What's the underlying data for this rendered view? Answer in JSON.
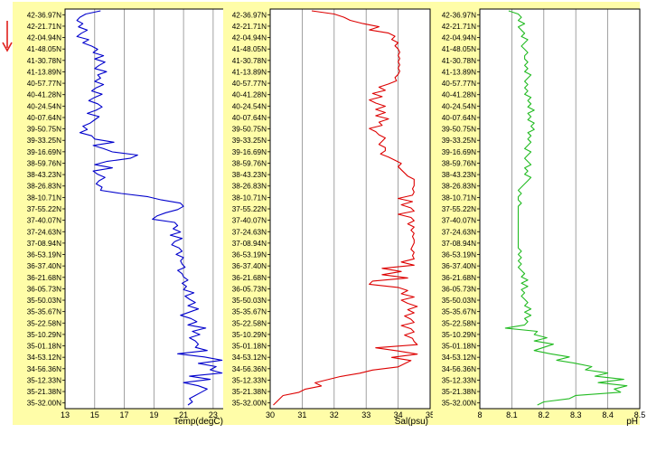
{
  "page": {
    "background": "#ffffff",
    "panel_fill": "#fffda8",
    "frame_color": "#000000",
    "grid_color": "#8a8a8a"
  },
  "direction_arrow": {
    "icon": "down-arrow-icon",
    "color": "#e0201b"
  },
  "latitude_labels": [
    "42-36.97N",
    "42-21.71N",
    "42-04.94N",
    "41-48.05N",
    "41-30.78N",
    "41-13.89N",
    "40-57.77N",
    "40-41.28N",
    "40-24.54N",
    "40-07.64N",
    "39-50.75N",
    "39-33.25N",
    "39-16.69N",
    "38-59.76N",
    "38-43.23N",
    "38-26.83N",
    "38-10.71N",
    "37-55.22N",
    "37-40.07N",
    "37-24.63N",
    "37-08.94N",
    "36-53.19N",
    "36-37.40N",
    "36-21.68N",
    "36-05.73N",
    "35-50.03N",
    "35-35.67N",
    "35-22.58N",
    "35-10.29N",
    "35-01.18N",
    "34-53.12N",
    "34-56.36N",
    "35-12.33N",
    "35-21.38N",
    "35-32.00N"
  ],
  "chart_data": [
    {
      "type": "line",
      "xlabel": "Temp(degC)",
      "xlim": [
        13,
        23.8
      ],
      "xticks": [
        13,
        15,
        17,
        19,
        21,
        23
      ],
      "series": [
        {
          "color": "#0000cc",
          "values": [
            15.4,
            14.4,
            14.0,
            13.8,
            14.2,
            13.9,
            14.5,
            14.1,
            13.8,
            14.6,
            14.2,
            14.8,
            15.2,
            14.9,
            15.6,
            15.0,
            15.7,
            15.3,
            15.0,
            15.8,
            15.2,
            15.4,
            15.0,
            15.6,
            15.1,
            14.8,
            15.5,
            15.0,
            14.6,
            15.2,
            15.5,
            15.1,
            14.5,
            15.3,
            15.0,
            14.7,
            14.2,
            14.5,
            14.0,
            14.8,
            15.0,
            16.3,
            14.9,
            15.6,
            16.2,
            17.9,
            17.4,
            15.8,
            15.0,
            16.2,
            14.9,
            15.2,
            15.7,
            15.3,
            15.1,
            15.5,
            15.4,
            16.8,
            18.6,
            19.5,
            20.8,
            21.0,
            20.6,
            19.8,
            19.2,
            18.9,
            20.4,
            20.6,
            20.3,
            20.8,
            20.1,
            20.9,
            20.4,
            20.2,
            20.7,
            20.9,
            20.5,
            21.0,
            20.8,
            20.9,
            21.1,
            20.6,
            20.9,
            21.0,
            21.3,
            20.9,
            21.2,
            21.0,
            21.7,
            21.1,
            21.4,
            21.8,
            21.3,
            22.0,
            21.4,
            20.8,
            21.5,
            21.9,
            21.3,
            22.5,
            21.6,
            22.1,
            21.4,
            21.8,
            22.0,
            21.8,
            22.6,
            20.6,
            22.4,
            23.6,
            22.0,
            23.2,
            22.8,
            23.6,
            21.4,
            22.8,
            21.0,
            22.0,
            22.6,
            22.2,
            21.8,
            21.4,
            21.6,
            21.3
          ]
        }
      ]
    },
    {
      "type": "line",
      "xlabel": "Sal(psu)",
      "xlim": [
        30,
        35
      ],
      "xticks": [
        30,
        31,
        32,
        33,
        34,
        35
      ],
      "series": [
        {
          "color": "#dd0000",
          "values": [
            31.3,
            32.0,
            32.3,
            32.5,
            32.9,
            33.4,
            33.1,
            33.7,
            33.9,
            33.8,
            34.0,
            33.9,
            34.0,
            34.05,
            34.0,
            34.05,
            34.0,
            34.05,
            34.0,
            34.05,
            34.0,
            33.9,
            33.95,
            33.7,
            33.4,
            33.6,
            33.2,
            33.5,
            33.1,
            33.3,
            33.6,
            33.3,
            33.6,
            33.3,
            33.7,
            33.4,
            33.5,
            33.1,
            33.3,
            33.4,
            33.6,
            33.5,
            33.4,
            33.6,
            33.6,
            33.45,
            33.7,
            33.9,
            34.1,
            34.0,
            34.1,
            34.2,
            34.3,
            34.5,
            34.5,
            34.5,
            34.45,
            34.5,
            34.45,
            34.0,
            34.45,
            34.1,
            34.4,
            34.5,
            34.0,
            34.4,
            34.5,
            34.3,
            34.5,
            34.4,
            34.5,
            34.45,
            34.5,
            34.5,
            34.45,
            34.4,
            34.5,
            34.45,
            34.5,
            34.1,
            34.5,
            33.5,
            34.1,
            33.5,
            34.3,
            33.2,
            33.1,
            34.0,
            34.3,
            34.1,
            34.5,
            34.1,
            34.3,
            34.6,
            34.3,
            34.5,
            34.2,
            34.4,
            34.5,
            34.1,
            34.4,
            34.5,
            34.2,
            34.45,
            34.5,
            34.6,
            33.3,
            34.0,
            34.6,
            33.8,
            34.4,
            34.2,
            34.0,
            33.2,
            32.8,
            32.2,
            31.8,
            31.4,
            31.6,
            31.1,
            30.9,
            30.4,
            30.3,
            30.2,
            30.1
          ]
        }
      ]
    },
    {
      "type": "line",
      "xlabel": "pH",
      "xlim": [
        8.0,
        8.5
      ],
      "xticks": [
        8,
        8.1,
        8.2,
        8.3,
        8.4,
        8.5
      ],
      "series": [
        {
          "color": "#22bb22",
          "values": [
            8.09,
            8.12,
            8.13,
            8.12,
            8.14,
            8.12,
            8.13,
            8.14,
            8.13,
            8.15,
            8.14,
            8.13,
            8.14,
            8.15,
            8.14,
            8.14,
            8.15,
            8.14,
            8.15,
            8.14,
            8.16,
            8.15,
            8.14,
            8.15,
            8.14,
            8.15,
            8.14,
            8.16,
            8.15,
            8.16,
            8.15,
            8.17,
            8.15,
            8.16,
            8.15,
            8.17,
            8.16,
            8.17,
            8.15,
            8.16,
            8.15,
            8.16,
            8.15,
            8.14,
            8.16,
            8.15,
            8.14,
            8.15,
            8.16,
            8.14,
            8.15,
            8.14,
            8.16,
            8.15,
            8.14,
            8.13,
            8.12,
            8.13,
            8.12,
            8.12,
            8.13,
            8.12,
            8.12,
            8.12,
            8.12,
            8.12,
            8.12,
            8.12,
            8.12,
            8.12,
            8.12,
            8.12,
            8.12,
            8.12,
            8.12,
            8.13,
            8.12,
            8.13,
            8.12,
            8.13,
            8.12,
            8.13,
            8.14,
            8.13,
            8.15,
            8.13,
            8.15,
            8.13,
            8.14,
            8.13,
            8.14,
            8.15,
            8.14,
            8.16,
            8.14,
            8.16,
            8.14,
            8.15,
            8.14,
            8.08,
            8.18,
            8.17,
            8.21,
            8.17,
            8.23,
            8.2,
            8.17,
            8.22,
            8.28,
            8.24,
            8.3,
            8.35,
            8.33,
            8.4,
            8.36,
            8.45,
            8.37,
            8.46,
            8.42,
            8.44,
            8.3,
            8.28,
            8.2,
            8.18
          ]
        }
      ]
    }
  ]
}
